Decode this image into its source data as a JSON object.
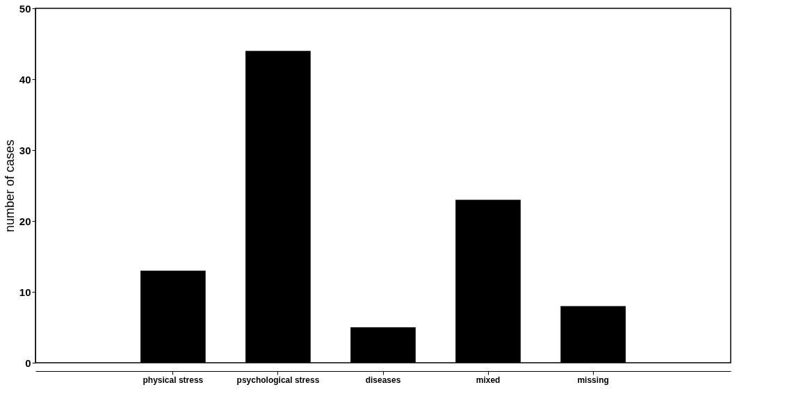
{
  "chart_data": {
    "type": "bar",
    "ylabel": "number of cases",
    "categories": [
      "physical stress",
      "psychological stress",
      "diseases",
      "mixed",
      "missing"
    ],
    "values": [
      13,
      44,
      5,
      23,
      8
    ],
    "color": "#000000",
    "ylim": [
      0,
      50
    ],
    "yticks": [
      0,
      10,
      20,
      30,
      40,
      50
    ],
    "grid": false
  }
}
